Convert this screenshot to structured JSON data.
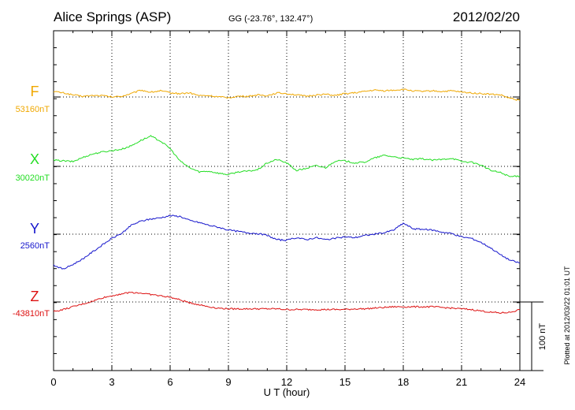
{
  "header": {
    "title": "Alice Springs (ASP)",
    "coordinates": "GG (-23.76°, 132.47°)",
    "date": "2012/02/20"
  },
  "footer": {
    "plotted": "Plotted at 2012/03/22 01:01  UT"
  },
  "chart_data": {
    "type": "line",
    "xlabel": "U T (hour)",
    "xlim": [
      0,
      24
    ],
    "xticks": [
      0,
      3,
      6,
      9,
      12,
      15,
      18,
      21,
      24
    ],
    "grid": true,
    "scale_bar": {
      "label": "100 nT",
      "value_nT": 100
    },
    "series": [
      {
        "name": "F",
        "baseline_label": "53160nT",
        "baseline_nT": 53160,
        "color": "#f0a800",
        "x": [
          0,
          0.5,
          1,
          1.5,
          2,
          2.5,
          3,
          3.5,
          4,
          4.5,
          5,
          5.5,
          6,
          6.5,
          7,
          7.5,
          8,
          8.5,
          9,
          9.5,
          10,
          10.5,
          11,
          11.5,
          12,
          12.5,
          13,
          13.5,
          14,
          14.5,
          15,
          15.5,
          16,
          16.5,
          17,
          17.5,
          18,
          18.5,
          19,
          19.5,
          20,
          20.5,
          21,
          21.5,
          22,
          22.5,
          23,
          23.5,
          24
        ],
        "y": [
          8,
          6,
          3,
          1,
          2,
          2,
          0,
          1,
          5,
          10,
          7,
          9,
          6,
          5,
          6,
          2,
          2,
          0,
          -1,
          1,
          1,
          3,
          2,
          6,
          5,
          3,
          1,
          3,
          4,
          2,
          5,
          6,
          8,
          10,
          9,
          10,
          11,
          9,
          8,
          9,
          8,
          9,
          7,
          6,
          5,
          4,
          3,
          -2,
          -5
        ]
      },
      {
        "name": "X",
        "baseline_label": "30020nT",
        "baseline_nT": 30020,
        "color": "#22dd22",
        "x": [
          0,
          0.5,
          1,
          1.5,
          2,
          2.5,
          3,
          3.5,
          4,
          4.5,
          5,
          5.5,
          6,
          6.5,
          7,
          7.5,
          8,
          8.5,
          9,
          9.5,
          10,
          10.5,
          11,
          11.5,
          12,
          12.5,
          13,
          13.5,
          14,
          14.5,
          15,
          15.5,
          16,
          16.5,
          17,
          17.5,
          18,
          18.5,
          19,
          19.5,
          20,
          20.5,
          21,
          21.5,
          22,
          22.5,
          23,
          23.5,
          24
        ],
        "y": [
          9,
          8,
          7,
          13,
          18,
          21,
          23,
          25,
          30,
          38,
          44,
          37,
          26,
          8,
          -2,
          -8,
          -7,
          -10,
          -12,
          -8,
          -7,
          -5,
          5,
          10,
          5,
          -6,
          -3,
          1,
          -2,
          8,
          8,
          5,
          6,
          12,
          16,
          14,
          12,
          10,
          11,
          9,
          10,
          12,
          7,
          6,
          2,
          -6,
          -9,
          -15,
          -14
        ]
      },
      {
        "name": "Y",
        "baseline_label": "2560nT",
        "baseline_nT": 2560,
        "color": "#1515cc",
        "x": [
          0,
          0.5,
          1,
          1.5,
          2,
          2.5,
          3,
          3.5,
          4,
          4.5,
          5,
          5.5,
          6,
          6.5,
          7,
          7.5,
          8,
          8.5,
          9,
          9.5,
          10,
          10.5,
          11,
          11.5,
          12,
          12.5,
          13,
          13.5,
          14,
          14.5,
          15,
          15.5,
          16,
          16.5,
          17,
          17.5,
          18,
          18.5,
          19,
          19.5,
          20,
          20.5,
          21,
          21.5,
          22,
          22.5,
          23,
          23.5,
          24
        ],
        "y": [
          -45,
          -51,
          -44,
          -36,
          -26,
          -16,
          -6,
          1,
          13,
          19,
          22,
          24,
          27,
          26,
          20,
          17,
          13,
          10,
          6,
          4,
          2,
          1,
          -2,
          -8,
          -9,
          -5,
          -8,
          -5,
          -8,
          -6,
          -4,
          -5,
          -2,
          0,
          2,
          6,
          16,
          8,
          7,
          6,
          3,
          1,
          -4,
          -6,
          -12,
          -20,
          -30,
          -38,
          -42
        ]
      },
      {
        "name": "Z",
        "baseline_label": "-43810nT",
        "baseline_nT": -43810,
        "color": "#dd1111",
        "x": [
          0,
          0.5,
          1,
          1.5,
          2,
          2.5,
          3,
          3.5,
          4,
          4.5,
          5,
          5.5,
          6,
          6.5,
          7,
          7.5,
          8,
          8.5,
          9,
          9.5,
          10,
          10.5,
          11,
          11.5,
          12,
          12.5,
          13,
          13.5,
          14,
          14.5,
          15,
          15.5,
          16,
          16.5,
          17,
          17.5,
          18,
          18.5,
          19,
          19.5,
          20,
          20.5,
          21,
          21.5,
          22,
          22.5,
          23,
          23.5,
          24
        ],
        "y": [
          -14,
          -11,
          -7,
          -3,
          1,
          6,
          9,
          12,
          14,
          13,
          11,
          9,
          7,
          3,
          -1,
          -4,
          -7,
          -9,
          -10,
          -10,
          -10,
          -10,
          -10,
          -10,
          -11,
          -11,
          -11,
          -11,
          -11,
          -11,
          -11,
          -10,
          -10,
          -9,
          -8,
          -7,
          -7,
          -7,
          -7,
          -7,
          -8,
          -9,
          -10,
          -11,
          -13,
          -15,
          -16,
          -15,
          -11
        ]
      }
    ]
  }
}
